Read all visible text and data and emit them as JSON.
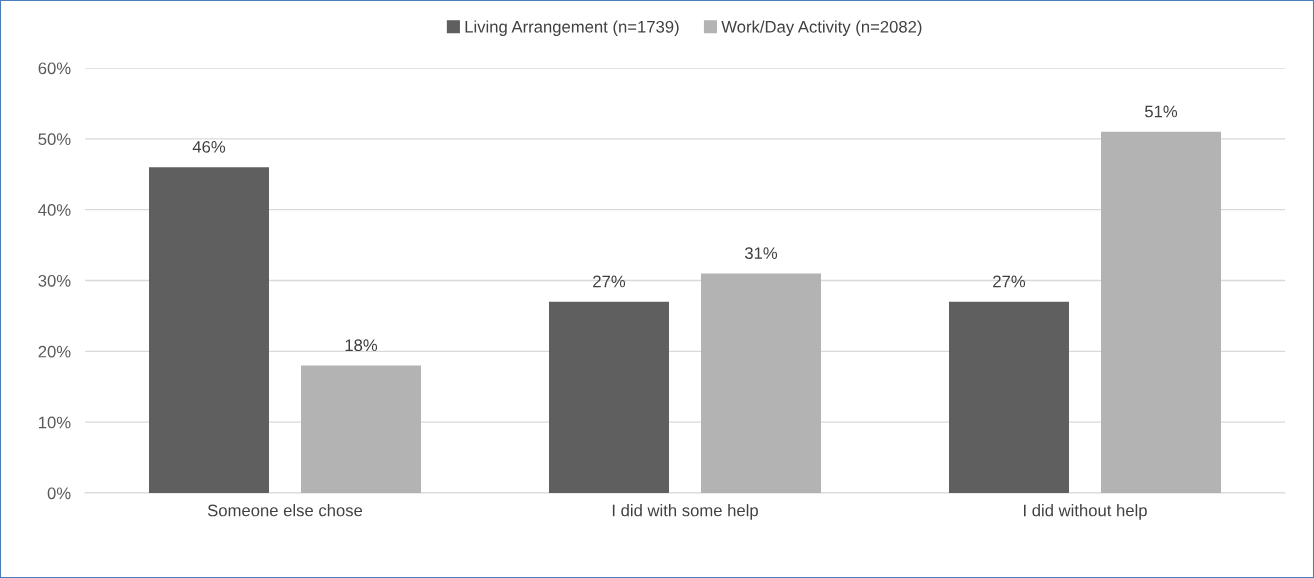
{
  "chart_data": {
    "type": "bar",
    "categories": [
      "Someone else chose",
      "I did with some help",
      "I did without help"
    ],
    "series": [
      {
        "name": "Living Arrangement (n=1739)",
        "color": "#5f5f5f",
        "values": [
          46,
          27,
          27
        ],
        "value_labels": [
          "46%",
          "27%",
          "27%"
        ]
      },
      {
        "name": "Work/Day Activity (n=2082)",
        "color": "#b3b3b3",
        "values": [
          18,
          31,
          51
        ],
        "value_labels": [
          "18%",
          "31%",
          "51%"
        ]
      }
    ],
    "ylim": [
      0,
      60
    ],
    "yticks": [
      {
        "value": 0,
        "label": "0%"
      },
      {
        "value": 10,
        "label": "10%"
      },
      {
        "value": 20,
        "label": "20%"
      },
      {
        "value": 30,
        "label": "30%"
      },
      {
        "value": 40,
        "label": "40%"
      },
      {
        "value": 50,
        "label": "50%"
      },
      {
        "value": 60,
        "label": "60%"
      }
    ],
    "grid": "y",
    "legend": "top"
  }
}
